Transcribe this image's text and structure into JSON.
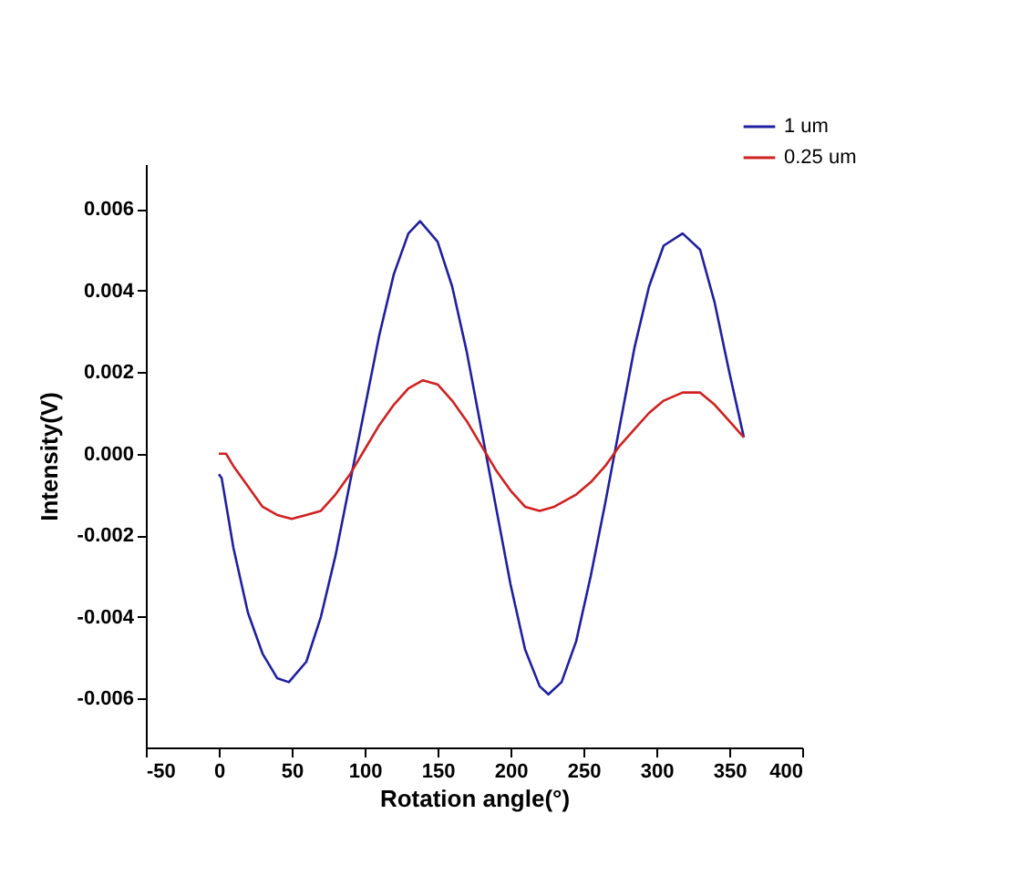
{
  "chart_data": {
    "type": "line",
    "xlabel": "Rotation angle(°)",
    "ylabel": "Intensity(V)",
    "xlim": [
      -50,
      400
    ],
    "xticks": [
      -50,
      0,
      50,
      100,
      150,
      200,
      250,
      300,
      350,
      400
    ],
    "ylim": [
      -0.0072,
      0.0071
    ],
    "yticks": [
      -0.006,
      -0.004,
      -0.002,
      {
        "value": 0,
        "label": "0.000"
      },
      0.002,
      0.004,
      0.006
    ],
    "grid": false,
    "legend": "top right",
    "marker": "none",
    "line_style": "solid",
    "series": [
      {
        "name": "1 um",
        "color": "#1f1fa0",
        "x": [
          0,
          2,
          10,
          20,
          30,
          40,
          48,
          60,
          70,
          80,
          90,
          100,
          110,
          120,
          130,
          138,
          150,
          160,
          170,
          180,
          190,
          200,
          210,
          220,
          226,
          235,
          245,
          255,
          265,
          275,
          285,
          295,
          305,
          318,
          330,
          340,
          350,
          360
        ],
        "values": [
          -0.0005,
          -0.0006,
          -0.0023,
          -0.0039,
          -0.0049,
          -0.0055,
          -0.0056,
          -0.0051,
          -0.004,
          -0.0025,
          -0.0007,
          0.0011,
          0.0029,
          0.0044,
          0.0054,
          0.0057,
          0.0052,
          0.0041,
          0.0025,
          0.0006,
          -0.0013,
          -0.0032,
          -0.0048,
          -0.0057,
          -0.0059,
          -0.0056,
          -0.0046,
          -0.003,
          -0.0012,
          0.0007,
          0.0026,
          0.0041,
          0.0051,
          0.0054,
          0.005,
          0.0037,
          0.002,
          0.0004
        ]
      },
      {
        "name": "0.25 um",
        "color": "#d02020",
        "x": [
          0,
          5,
          10,
          20,
          30,
          40,
          50,
          60,
          70,
          80,
          90,
          100,
          110,
          120,
          130,
          140,
          150,
          160,
          170,
          180,
          190,
          200,
          210,
          220,
          230,
          245,
          255,
          265,
          275,
          285,
          295,
          305,
          318,
          330,
          340,
          350,
          360
        ],
        "values": [
          0,
          0,
          -0.0003,
          -0.0008,
          -0.0013,
          -0.0015,
          -0.0016,
          -0.0015,
          -0.0014,
          -0.001,
          -0.0005,
          0.0001,
          0.0007,
          0.0012,
          0.0016,
          0.0018,
          0.0017,
          0.0013,
          0.0008,
          0.0002,
          -0.0004,
          -0.0009,
          -0.0013,
          -0.0014,
          -0.0013,
          -0.001,
          -0.0007,
          -0.0003,
          0.0002,
          0.0006,
          0.001,
          0.0013,
          0.0015,
          0.0015,
          0.0012,
          0.0008,
          0.0004
        ]
      }
    ]
  }
}
